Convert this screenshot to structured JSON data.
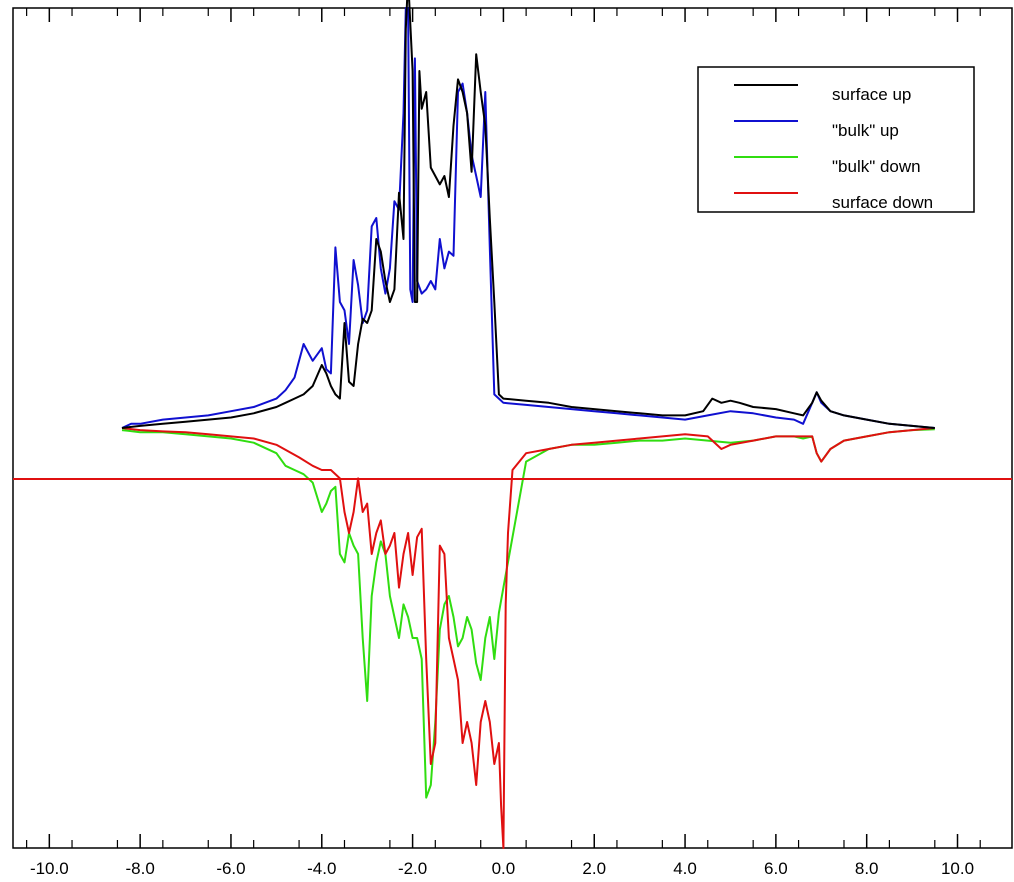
{
  "chart_data": {
    "type": "line",
    "title": "",
    "xlabel": "",
    "ylabel": "",
    "xlim": [
      -10.8,
      11.2
    ],
    "ylim": [
      -1.0,
      1.0
    ],
    "grid": false,
    "legend": "top-right",
    "x_tick_values": [
      -10.0,
      -8.0,
      -6.0,
      -4.0,
      -2.0,
      0.0,
      2.0,
      4.0,
      6.0,
      8.0,
      10.0
    ],
    "x_tick_labels": [
      "-10.0",
      "-8.0",
      "-6.0",
      "-4.0",
      "-2.0",
      "0.0",
      "2.0",
      "4.0",
      "6.0",
      "8.0",
      "10.0"
    ],
    "series": [
      {
        "name": "surface up",
        "color": "#000000",
        "x": [
          -8.4,
          -8.0,
          -7.5,
          -7.0,
          -6.5,
          -6.0,
          -5.5,
          -5.0,
          -4.8,
          -4.6,
          -4.4,
          -4.2,
          -4.0,
          -3.9,
          -3.8,
          -3.7,
          -3.6,
          -3.5,
          -3.4,
          -3.3,
          -3.2,
          -3.1,
          -3.0,
          -2.9,
          -2.8,
          -2.7,
          -2.6,
          -2.5,
          -2.4,
          -2.3,
          -2.2,
          -2.15,
          -2.1,
          -2.0,
          -1.95,
          -1.9,
          -1.85,
          -1.8,
          -1.7,
          -1.6,
          -1.5,
          -1.4,
          -1.3,
          -1.2,
          -1.1,
          -1.0,
          -0.9,
          -0.8,
          -0.7,
          -0.6,
          -0.5,
          -0.4,
          -0.3,
          -0.2,
          -0.1,
          0.0,
          0.5,
          1.0,
          1.5,
          2.0,
          2.5,
          3.0,
          3.5,
          4.0,
          4.4,
          4.6,
          4.8,
          5.0,
          5.2,
          5.5,
          6.0,
          6.4,
          6.6,
          6.8,
          6.9,
          7.0,
          7.2,
          7.5,
          8.0,
          8.5,
          9.0,
          9.5
        ],
        "values": [
          0.0,
          0.005,
          0.01,
          0.015,
          0.02,
          0.025,
          0.035,
          0.05,
          0.06,
          0.07,
          0.08,
          0.1,
          0.15,
          0.13,
          0.1,
          0.08,
          0.07,
          0.25,
          0.11,
          0.1,
          0.2,
          0.26,
          0.25,
          0.28,
          0.45,
          0.42,
          0.35,
          0.3,
          0.33,
          0.56,
          0.45,
          0.95,
          1.07,
          0.85,
          0.3,
          0.3,
          0.85,
          0.76,
          0.8,
          0.62,
          0.6,
          0.58,
          0.6,
          0.55,
          0.72,
          0.83,
          0.8,
          0.75,
          0.61,
          0.89,
          0.8,
          0.72,
          0.5,
          0.3,
          0.08,
          0.07,
          0.065,
          0.06,
          0.05,
          0.045,
          0.04,
          0.035,
          0.03,
          0.03,
          0.04,
          0.07,
          0.06,
          0.065,
          0.06,
          0.05,
          0.045,
          0.035,
          0.03,
          0.06,
          0.085,
          0.065,
          0.04,
          0.03,
          0.02,
          0.01,
          0.005,
          0.0
        ]
      },
      {
        "name": "\"bulk\" up",
        "color": "#1010d0",
        "x": [
          -8.4,
          -8.2,
          -8.0,
          -7.5,
          -7.0,
          -6.5,
          -6.0,
          -5.5,
          -5.0,
          -4.8,
          -4.6,
          -4.4,
          -4.2,
          -4.0,
          -3.9,
          -3.8,
          -3.7,
          -3.6,
          -3.5,
          -3.4,
          -3.3,
          -3.2,
          -3.1,
          -3.0,
          -2.9,
          -2.8,
          -2.7,
          -2.6,
          -2.5,
          -2.4,
          -2.3,
          -2.2,
          -2.15,
          -2.1,
          -2.05,
          -2.0,
          -1.95,
          -1.9,
          -1.8,
          -1.7,
          -1.6,
          -1.5,
          -1.4,
          -1.3,
          -1.2,
          -1.1,
          -1.0,
          -0.9,
          -0.8,
          -0.7,
          -0.6,
          -0.5,
          -0.4,
          -0.3,
          -0.2,
          -0.1,
          0.0,
          0.5,
          1.0,
          1.5,
          2.0,
          2.5,
          3.0,
          3.5,
          4.0,
          4.5,
          5.0,
          5.5,
          6.0,
          6.4,
          6.6,
          6.8,
          6.9,
          7.0,
          7.2,
          7.5,
          8.0,
          8.5,
          9.0,
          9.5
        ],
        "values": [
          0.0,
          0.01,
          0.01,
          0.02,
          0.025,
          0.03,
          0.04,
          0.05,
          0.07,
          0.09,
          0.12,
          0.2,
          0.16,
          0.19,
          0.14,
          0.13,
          0.43,
          0.3,
          0.28,
          0.2,
          0.4,
          0.34,
          0.25,
          0.28,
          0.48,
          0.5,
          0.38,
          0.32,
          0.38,
          0.54,
          0.52,
          0.75,
          1.0,
          1.0,
          0.33,
          0.3,
          0.88,
          0.35,
          0.32,
          0.33,
          0.35,
          0.33,
          0.45,
          0.38,
          0.42,
          0.41,
          0.8,
          0.82,
          0.75,
          0.65,
          0.6,
          0.55,
          0.8,
          0.43,
          0.08,
          0.07,
          0.06,
          0.055,
          0.05,
          0.045,
          0.04,
          0.035,
          0.03,
          0.025,
          0.02,
          0.03,
          0.04,
          0.035,
          0.025,
          0.02,
          0.01,
          0.06,
          0.085,
          0.06,
          0.04,
          0.03,
          0.02,
          0.01,
          0.005,
          0.0
        ]
      },
      {
        "name": "\"bulk\" down",
        "color": "#30dd10",
        "x": [
          -8.4,
          -8.0,
          -7.5,
          -7.0,
          -6.5,
          -6.0,
          -5.5,
          -5.0,
          -4.8,
          -4.6,
          -4.4,
          -4.2,
          -4.0,
          -3.9,
          -3.8,
          -3.7,
          -3.6,
          -3.5,
          -3.4,
          -3.3,
          -3.2,
          -3.1,
          -3.0,
          -2.9,
          -2.8,
          -2.7,
          -2.6,
          -2.5,
          -2.4,
          -2.3,
          -2.2,
          -2.1,
          -2.0,
          -1.9,
          -1.8,
          -1.7,
          -1.6,
          -1.5,
          -1.4,
          -1.3,
          -1.2,
          -1.1,
          -1.0,
          -0.9,
          -0.8,
          -0.7,
          -0.6,
          -0.5,
          -0.4,
          -0.3,
          -0.2,
          -0.1,
          0.0,
          0.5,
          1.0,
          1.5,
          2.0,
          2.5,
          3.0,
          3.5,
          4.0,
          4.5,
          5.0,
          5.5,
          6.0,
          6.4,
          6.6,
          6.8,
          6.9,
          7.0,
          7.2,
          7.5,
          8.0,
          8.5,
          9.0,
          9.5
        ],
        "values": [
          -0.005,
          -0.01,
          -0.01,
          -0.015,
          -0.02,
          -0.025,
          -0.035,
          -0.06,
          -0.09,
          -0.1,
          -0.11,
          -0.13,
          -0.2,
          -0.18,
          -0.15,
          -0.14,
          -0.3,
          -0.32,
          -0.25,
          -0.28,
          -0.3,
          -0.5,
          -0.65,
          -0.4,
          -0.32,
          -0.27,
          -0.3,
          -0.4,
          -0.45,
          -0.5,
          -0.42,
          -0.45,
          -0.5,
          -0.5,
          -0.55,
          -0.88,
          -0.85,
          -0.7,
          -0.48,
          -0.42,
          -0.4,
          -0.45,
          -0.52,
          -0.5,
          -0.45,
          -0.48,
          -0.56,
          -0.6,
          -0.5,
          -0.45,
          -0.55,
          -0.44,
          -0.38,
          -0.08,
          -0.05,
          -0.04,
          -0.04,
          -0.035,
          -0.03,
          -0.03,
          -0.025,
          -0.03,
          -0.035,
          -0.03,
          -0.02,
          -0.02,
          -0.025,
          -0.02,
          -0.06,
          -0.08,
          -0.05,
          -0.03,
          -0.02,
          -0.01,
          -0.005,
          -0.003
        ]
      },
      {
        "name": "surface down",
        "color": "#e01010",
        "x": [
          -8.4,
          -8.0,
          -7.5,
          -7.0,
          -6.5,
          -6.0,
          -5.5,
          -5.0,
          -4.5,
          -4.2,
          -4.0,
          -3.8,
          -3.6,
          -3.5,
          -3.4,
          -3.3,
          -3.2,
          -3.1,
          -3.0,
          -2.9,
          -2.8,
          -2.7,
          -2.6,
          -2.5,
          -2.4,
          -2.3,
          -2.2,
          -2.1,
          -2.0,
          -1.9,
          -1.8,
          -1.7,
          -1.6,
          -1.5,
          -1.4,
          -1.3,
          -1.2,
          -1.1,
          -1.0,
          -0.9,
          -0.8,
          -0.7,
          -0.6,
          -0.5,
          -0.4,
          -0.3,
          -0.2,
          -0.1,
          -0.05,
          0.0,
          0.05,
          0.1,
          0.2,
          0.5,
          1.0,
          1.5,
          2.0,
          2.5,
          3.0,
          3.5,
          4.0,
          4.5,
          4.8,
          5.0,
          5.5,
          6.0,
          6.4,
          6.6,
          6.8,
          6.9,
          7.0,
          7.2,
          7.5,
          8.0,
          8.5,
          9.0,
          9.5
        ],
        "values": [
          0.0,
          -0.005,
          -0.008,
          -0.01,
          -0.015,
          -0.02,
          -0.025,
          -0.04,
          -0.07,
          -0.09,
          -0.1,
          -0.1,
          -0.12,
          -0.2,
          -0.25,
          -0.2,
          -0.12,
          -0.2,
          -0.18,
          -0.3,
          -0.25,
          -0.22,
          -0.3,
          -0.28,
          -0.25,
          -0.38,
          -0.3,
          -0.25,
          -0.35,
          -0.26,
          -0.24,
          -0.55,
          -0.8,
          -0.75,
          -0.28,
          -0.3,
          -0.5,
          -0.55,
          -0.6,
          -0.75,
          -0.7,
          -0.75,
          -0.85,
          -0.7,
          -0.65,
          -0.7,
          -0.8,
          -0.75,
          -0.9,
          -1.0,
          -0.42,
          -0.25,
          -0.1,
          -0.06,
          -0.05,
          -0.04,
          -0.035,
          -0.03,
          -0.025,
          -0.02,
          -0.015,
          -0.02,
          -0.05,
          -0.04,
          -0.03,
          -0.02,
          -0.02,
          -0.02,
          -0.02,
          -0.06,
          -0.08,
          -0.05,
          -0.03,
          -0.02,
          -0.01,
          -0.005,
          0.0
        ]
      }
    ]
  }
}
